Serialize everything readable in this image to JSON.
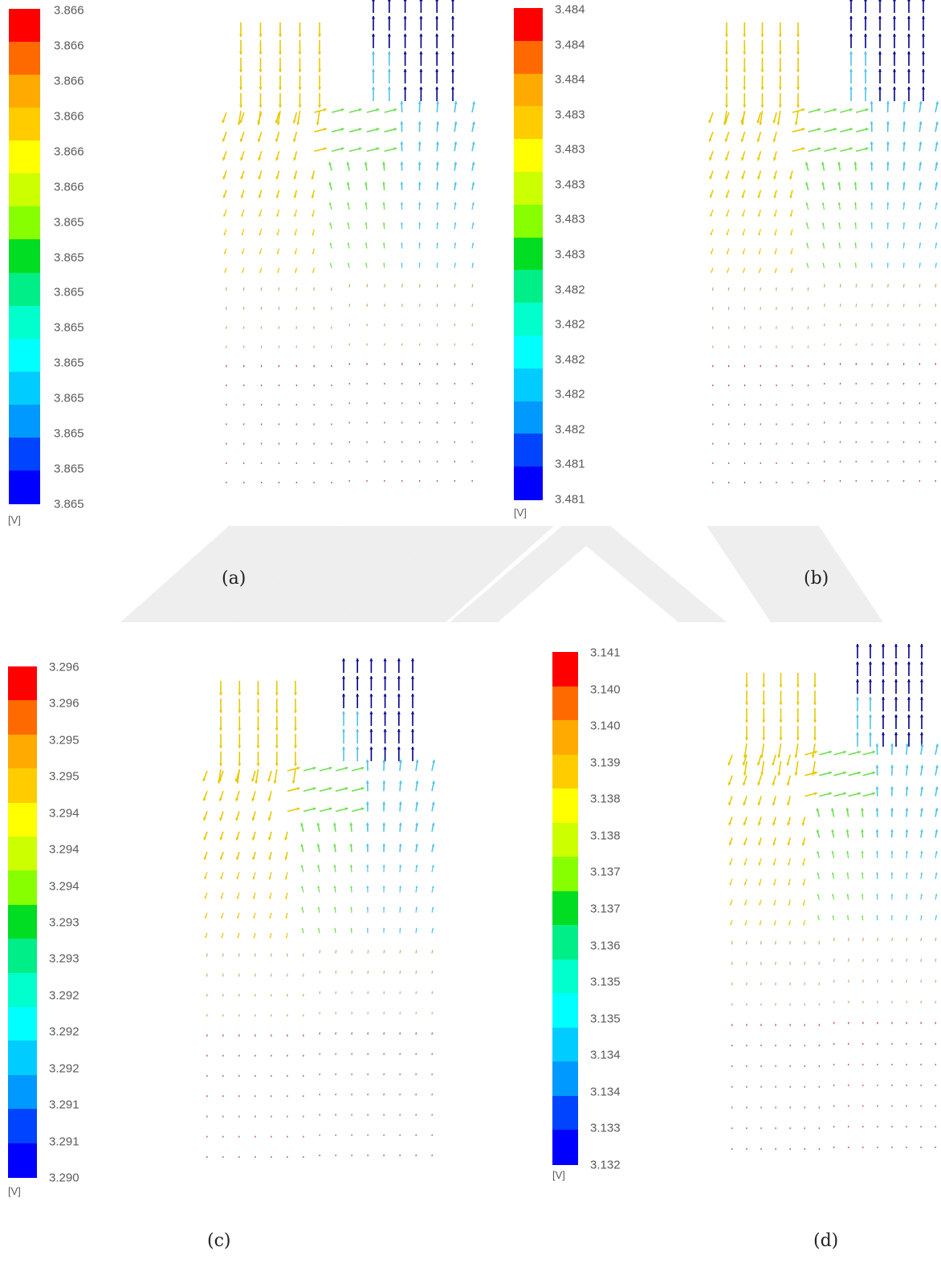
{
  "panels": [
    {
      "id": "a",
      "caption": "(a)",
      "unit": "[V]",
      "ticks": [
        "3.866",
        "3.866",
        "3.866",
        "3.866",
        "3.866",
        "3.866",
        "3.865",
        "3.865",
        "3.865",
        "3.865",
        "3.865",
        "3.865",
        "3.865",
        "3.865",
        "3.865"
      ]
    },
    {
      "id": "b",
      "caption": "(b)",
      "unit": "[V]",
      "ticks": [
        "3.484",
        "3.484",
        "3.484",
        "3.483",
        "3.483",
        "3.483",
        "3.483",
        "3.483",
        "3.482",
        "3.482",
        "3.482",
        "3.482",
        "3.482",
        "3.481",
        "3.481"
      ]
    },
    {
      "id": "c",
      "caption": "(c)",
      "unit": "[V]",
      "ticks": [
        "3.296",
        "3.296",
        "3.295",
        "3.295",
        "3.294",
        "3.294",
        "3.294",
        "3.293",
        "3.293",
        "3.292",
        "3.292",
        "3.292",
        "3.291",
        "3.291",
        "3.290"
      ]
    },
    {
      "id": "d",
      "caption": "(d)",
      "unit": "[V]",
      "ticks": [
        "3.141",
        "3.140",
        "3.140",
        "3.139",
        "3.138",
        "3.138",
        "3.137",
        "3.137",
        "3.136",
        "3.135",
        "3.135",
        "3.134",
        "3.134",
        "3.133",
        "3.132"
      ]
    }
  ],
  "colormap": [
    "#ff0000",
    "#ff6a00",
    "#ffaa00",
    "#ffcc00",
    "#ffff00",
    "#ccff00",
    "#88ff00",
    "#00dd22",
    "#00ee88",
    "#00ffcc",
    "#00ffff",
    "#00ccff",
    "#0099ff",
    "#0044ff",
    "#0000ff"
  ],
  "vector_colors": {
    "fast_outflow": "#00008b",
    "outflow_mixed": "#4fc3e8",
    "inlet_flow": "#e8c800",
    "mid_flow": "#6ee050",
    "slow_flow": "#d4a574",
    "stagnant": "#c0404a"
  },
  "watermark_color": "#eeeeee"
}
